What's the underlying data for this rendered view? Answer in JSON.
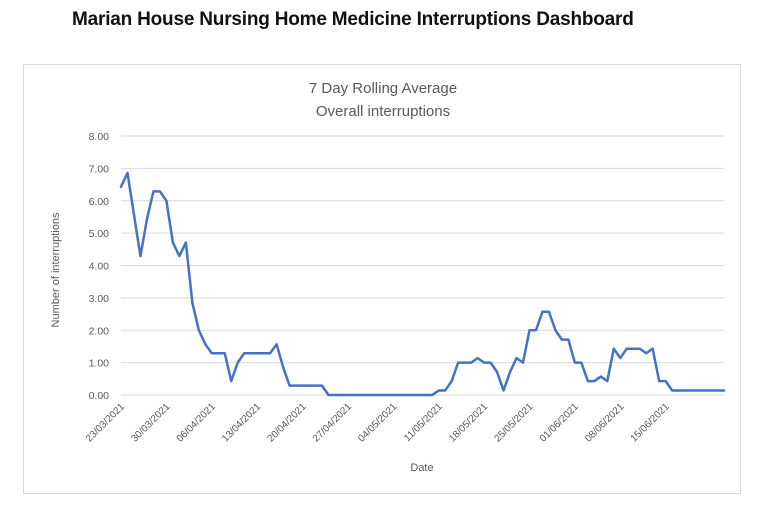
{
  "page": {
    "title": "Marian House Nursing Home Medicine Interruptions Dashboard"
  },
  "chart_data": {
    "type": "line",
    "title": "7 Day Rolling Average",
    "subtitle": "Overall interruptions",
    "xlabel": "Date",
    "ylabel": "Number of interruptions",
    "ylim": [
      0,
      8
    ],
    "y_ticks": [
      "0.00",
      "1.00",
      "2.00",
      "3.00",
      "4.00",
      "5.00",
      "6.00",
      "7.00",
      "8.00"
    ],
    "x_ticks": [
      "23/03/2021",
      "30/03/2021",
      "06/04/2021",
      "13/04/2021",
      "20/04/2021",
      "27/04/2021",
      "04/05/2021",
      "11/05/2021",
      "18/05/2021",
      "25/05/2021",
      "01/06/2021",
      "08/06/2021",
      "15/06/2021"
    ],
    "x_start": "23/03/2021",
    "grid": true,
    "line_color": "#4472c4",
    "grid_color": "#d9d9d9",
    "series": [
      {
        "values": [
          6.43,
          6.86,
          5.57,
          4.29,
          5.43,
          6.29,
          6.29,
          6.0,
          4.71,
          4.29,
          4.71,
          2.86,
          2.0,
          1.57,
          1.29,
          1.29,
          1.29,
          0.43,
          1.0,
          1.29,
          1.29,
          1.29,
          1.29,
          1.29,
          1.57,
          0.86,
          0.29,
          0.29,
          0.29,
          0.29,
          0.29,
          0.29,
          0.0,
          0.0,
          0.0,
          0.0,
          0.0,
          0.0,
          0.0,
          0.0,
          0.0,
          0.0,
          0.0,
          0.0,
          0.0,
          0.0,
          0.0,
          0.0,
          0.0,
          0.14,
          0.14,
          0.43,
          1.0,
          1.0,
          1.0,
          1.14,
          1.0,
          1.0,
          0.71,
          0.14,
          0.71,
          1.14,
          1.0,
          2.0,
          2.0,
          2.57,
          2.57,
          2.0,
          1.71,
          1.71,
          1.0,
          1.0,
          0.43,
          0.43,
          0.57,
          0.43,
          1.43,
          1.14,
          1.43,
          1.43,
          1.43,
          1.29,
          1.43,
          0.43,
          0.43,
          0.14,
          0.14,
          0.14,
          0.14,
          0.14,
          0.14,
          0.14,
          0.14,
          0.14
        ]
      }
    ]
  }
}
